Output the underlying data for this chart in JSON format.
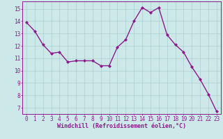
{
  "x": [
    0,
    1,
    2,
    3,
    4,
    5,
    6,
    7,
    8,
    9,
    10,
    11,
    12,
    13,
    14,
    15,
    16,
    17,
    18,
    19,
    20,
    21,
    22,
    23
  ],
  "y": [
    13.9,
    13.2,
    12.1,
    11.4,
    11.5,
    10.7,
    10.8,
    10.8,
    10.8,
    10.4,
    10.4,
    11.9,
    12.5,
    14.0,
    15.1,
    14.7,
    15.1,
    12.9,
    12.1,
    11.5,
    10.3,
    9.3,
    8.1,
    6.7
  ],
  "line_color": "#8b1a8b",
  "marker": "D",
  "marker_size": 2.0,
  "bg_color": "#cce8e8",
  "grid_color": "#aacfcf",
  "xlabel": "Windchill (Refroidissement éolien,°C)",
  "xlabel_color": "#8b1a8b",
  "tick_color": "#8b1a8b",
  "spine_color": "#8b1a8b",
  "ylim": [
    6.5,
    15.6
  ],
  "yticks": [
    7,
    8,
    9,
    10,
    11,
    12,
    13,
    14,
    15
  ],
  "xticks": [
    0,
    1,
    2,
    3,
    4,
    5,
    6,
    7,
    8,
    9,
    10,
    11,
    12,
    13,
    14,
    15,
    16,
    17,
    18,
    19,
    20,
    21,
    22,
    23
  ],
  "line_width": 1.0,
  "xlabel_fontsize": 6.0,
  "tick_fontsize": 5.5
}
